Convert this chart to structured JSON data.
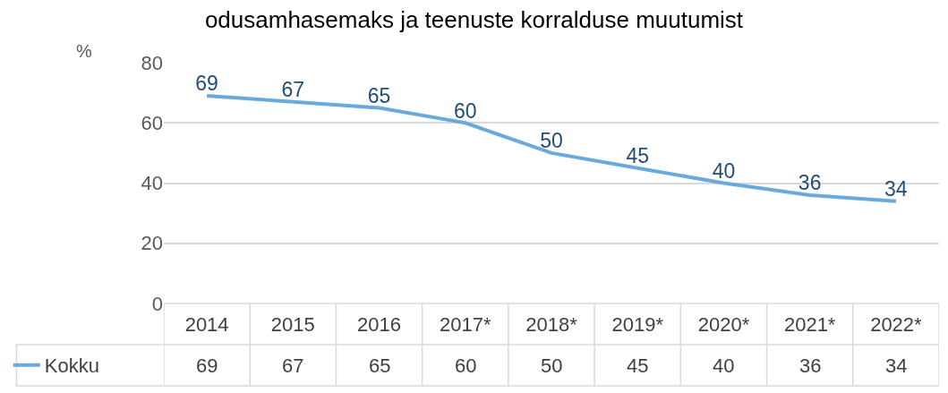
{
  "chart_data": {
    "type": "line",
    "title": "odusamhasemaks ja teenuste korralduse muutumist",
    "ylabel": "%",
    "categories": [
      "2014",
      "2015",
      "2016",
      "2017*",
      "2018*",
      "2019*",
      "2020*",
      "2021*",
      "2022*"
    ],
    "series": [
      {
        "name": "Kokku",
        "color": "#6aa9dc",
        "values": [
          69,
          67,
          65,
          60,
          50,
          45,
          40,
          36,
          34
        ],
        "value_labels": [
          "69",
          "67",
          "65",
          "60",
          "50",
          "45",
          "40",
          "36",
          "34"
        ]
      }
    ],
    "annotations": [
      "69",
      "67",
      "65",
      "60",
      "50",
      "45",
      "40",
      "36",
      "34"
    ],
    "ylim": [
      0,
      80
    ],
    "yticks": [
      0,
      20,
      40,
      60,
      80
    ],
    "grid": "y",
    "legend": "bottom left",
    "marker": "none",
    "line_style": "solid"
  }
}
